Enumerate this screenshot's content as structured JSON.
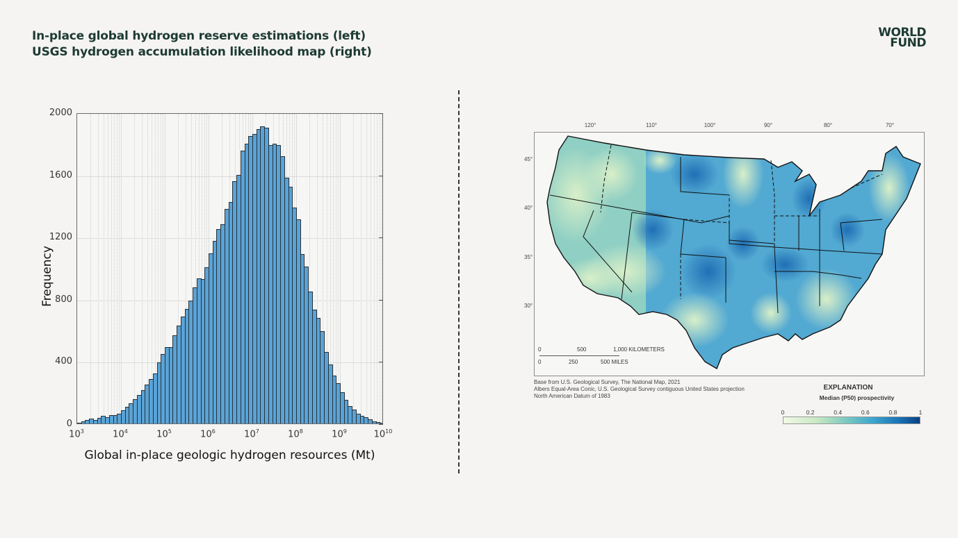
{
  "header": {
    "title_line1": "In-place global hydrogen reserve estimations (left)",
    "title_line2": "USGS hydrogen accumulation likelihood map (right)",
    "logo_line1": "WORLD",
    "logo_line2": "FUND"
  },
  "colors": {
    "bar_fill": "#5aa3d6",
    "bar_edge": "#27323a",
    "title_text": "#1d3a33",
    "background": "#f5f4f2",
    "colorbar_low": "#f3f9e6",
    "colorbar_high": "#08407f"
  },
  "chart_data": [
    {
      "type": "bar",
      "title": "",
      "xlabel": "Global in-place geologic hydrogen resources (Mt)",
      "ylabel": "Frequency",
      "xscale": "log",
      "xlim": [
        1000,
        10000000000
      ],
      "ylim": [
        0,
        2000
      ],
      "yticks": [
        0,
        400,
        800,
        1200,
        1600,
        2000
      ],
      "xticks": [
        "10^3",
        "10^4",
        "10^5",
        "10^6",
        "10^7",
        "10^8",
        "10^9",
        "10^10"
      ],
      "grid": true,
      "bins_per_decade": 10,
      "bin_start_log10": 3.0,
      "bin_width_log10": 0.1,
      "values": [
        5,
        13,
        22,
        31,
        22,
        36,
        49,
        40,
        54,
        54,
        63,
        85,
        107,
        129,
        156,
        183,
        214,
        250,
        286,
        321,
        393,
        446,
        491,
        491,
        567,
        629,
        688,
        737,
        790,
        875,
        933,
        929,
        1004,
        1094,
        1174,
        1250,
        1281,
        1379,
        1424,
        1558,
        1598,
        1754,
        1799,
        1848,
        1862,
        1893,
        1911,
        1902,
        1790,
        1799,
        1790,
        1719,
        1580,
        1522,
        1388,
        1313,
        1089,
        1009,
        848,
        732,
        679,
        594,
        460,
        379,
        308,
        259,
        201,
        152,
        112,
        89,
        63,
        49,
        40,
        27,
        13,
        9,
        5
      ]
    },
    {
      "type": "heatmap",
      "title": "USGS hydrogen accumulation likelihood map",
      "colorbar_label": "Median (P50) prospectivity",
      "colorbar_range": [
        0,
        1
      ],
      "colorbar_ticks": [
        "0",
        "0.2",
        "0.4",
        "0.6",
        "0.8",
        "1"
      ],
      "longitude_ticks": [
        "120°",
        "110°",
        "100°",
        "90°",
        "80°",
        "70°"
      ],
      "latitude_ticks": [
        "45°",
        "40°",
        "35°",
        "30°"
      ]
    }
  ],
  "histogram": {
    "yticks": [
      "2000",
      "1600",
      "1200",
      "800",
      "400",
      "0"
    ],
    "xticks": [
      {
        "base": "10",
        "exp": "3"
      },
      {
        "base": "10",
        "exp": "4"
      },
      {
        "base": "10",
        "exp": "5"
      },
      {
        "base": "10",
        "exp": "6"
      },
      {
        "base": "10",
        "exp": "7"
      },
      {
        "base": "10",
        "exp": "8"
      },
      {
        "base": "10",
        "exp": "9"
      },
      {
        "base": "10",
        "exp": "10"
      }
    ],
    "ylabel": "Frequency",
    "xlabel": "Global in-place geologic hydrogen resources (Mt)"
  },
  "map": {
    "lon_labels": [
      "120°",
      "110°",
      "100°",
      "90°",
      "80°",
      "70°"
    ],
    "lat_labels": [
      "45°",
      "40°",
      "35°",
      "30°"
    ],
    "scale_km": [
      "0",
      "500",
      "1,000 KILOMETERS"
    ],
    "scale_mi": [
      "0",
      "250",
      "500 MILES"
    ],
    "notes": [
      "Base from U.S. Geological Survey, The National Map, 2021",
      "Albers Equal-Area Conic, U.S. Geological Survey contiguous United States projection",
      "North American Datum of 1983"
    ],
    "explanation_title": "EXPLANATION",
    "explanation_subtitle": "Median (P50) prospectivity",
    "colorbar_labels": [
      "0",
      "0.2",
      "0.4",
      "0.6",
      "0.8",
      "1"
    ]
  }
}
